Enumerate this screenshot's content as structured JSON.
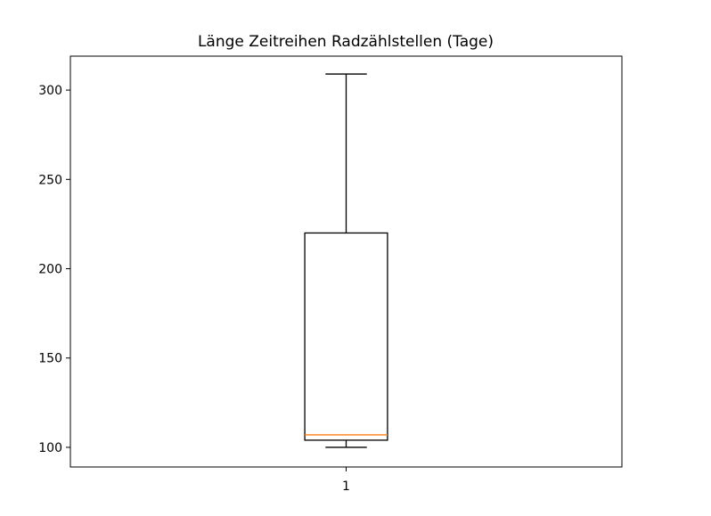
{
  "chart_data": {
    "type": "box",
    "title": "Länge Zeitreihen Radzählstellen (Tage)",
    "xlabel": "",
    "ylabel": "",
    "categories": [
      "1"
    ],
    "boxes": [
      {
        "category": "1",
        "whisker_low": 100,
        "q1": 104,
        "median": 107,
        "q3": 220,
        "whisker_high": 309
      }
    ],
    "ylim": [
      89,
      319
    ],
    "yticks": [
      100,
      150,
      200,
      250,
      300
    ],
    "grid": false,
    "colors": {
      "box": "#000000",
      "median": "#ff7f0e",
      "axes": "#000000"
    }
  }
}
